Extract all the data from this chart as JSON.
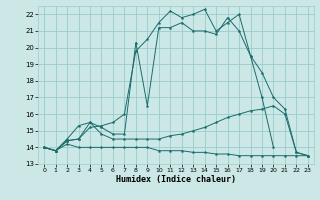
{
  "xlabel": "Humidex (Indice chaleur)",
  "xlim": [
    -0.5,
    23.5
  ],
  "ylim": [
    13,
    22.5
  ],
  "yticks": [
    13,
    14,
    15,
    16,
    17,
    18,
    19,
    20,
    21,
    22
  ],
  "xticks": [
    0,
    1,
    2,
    3,
    4,
    5,
    6,
    7,
    8,
    9,
    10,
    11,
    12,
    13,
    14,
    15,
    16,
    17,
    18,
    19,
    20,
    21,
    22,
    23
  ],
  "bg_color": "#cce8e6",
  "grid_color": "#99ccca",
  "line_color": "#1a6b6b",
  "curve1_y": [
    14.0,
    13.8,
    14.4,
    14.5,
    15.2,
    15.3,
    15.5,
    16.0,
    19.8,
    20.5,
    21.5,
    22.2,
    21.8,
    22.0,
    22.3,
    21.0,
    21.5,
    22.0,
    19.5,
    18.5,
    17.0,
    16.3,
    13.7,
    13.5
  ],
  "curve2_y": [
    14.0,
    13.8,
    14.5,
    15.3,
    15.5,
    15.2,
    14.8,
    14.8,
    20.3,
    16.5,
    21.2,
    21.2,
    21.5,
    21.0,
    21.0,
    20.8,
    21.8,
    21.0,
    19.5,
    17.0,
    14.0,
    null,
    null,
    null
  ],
  "curve3_y": [
    14.0,
    13.8,
    14.4,
    14.5,
    15.5,
    14.8,
    14.5,
    14.5,
    14.5,
    14.5,
    14.5,
    14.7,
    14.8,
    15.0,
    15.2,
    15.5,
    15.8,
    16.0,
    16.2,
    16.3,
    16.5,
    16.0,
    13.7,
    13.5
  ],
  "curve4_y": [
    14.0,
    13.8,
    14.2,
    14.0,
    14.0,
    14.0,
    14.0,
    14.0,
    14.0,
    14.0,
    13.8,
    13.8,
    13.8,
    13.7,
    13.7,
    13.6,
    13.6,
    13.5,
    13.5,
    13.5,
    13.5,
    13.5,
    13.5,
    13.5
  ]
}
